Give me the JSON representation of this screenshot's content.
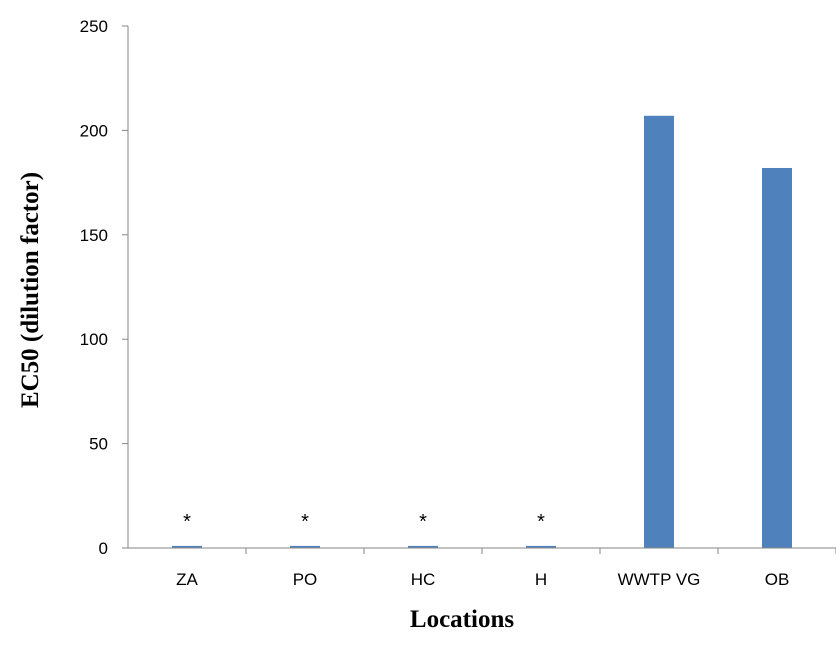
{
  "chart_data": {
    "type": "bar",
    "title": "",
    "xlabel": "Locations",
    "ylabel": "EC50 (dilution factor)",
    "categories": [
      "ZA",
      "PO",
      "HC",
      "H",
      "WWTP VG",
      "OB"
    ],
    "values": [
      1,
      1,
      1,
      1,
      207,
      182
    ],
    "annotations": [
      "*",
      "*",
      "*",
      "*",
      "",
      ""
    ],
    "ylim": [
      0,
      250
    ],
    "yticks": [
      "0",
      "50",
      "100",
      "150",
      "200",
      "250"
    ],
    "grid": false,
    "legend": "none",
    "colors": {
      "bar": "#4F81BD",
      "axis": "#868686"
    }
  }
}
